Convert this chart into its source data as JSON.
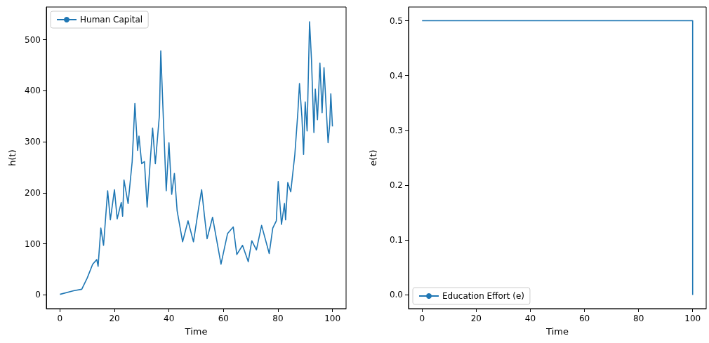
{
  "chart_data": [
    {
      "type": "line",
      "xlabel": "Time",
      "ylabel": "h(t)",
      "xlim": [
        -5,
        105
      ],
      "ylim": [
        -27,
        564
      ],
      "xticks": [
        0,
        20,
        40,
        60,
        80,
        100
      ],
      "yticks": [
        0,
        100,
        200,
        300,
        400,
        500
      ],
      "legend": "top left",
      "grid": false,
      "marker": "none",
      "line_style": "solid",
      "series": [
        {
          "name": "Human Capital",
          "color": "#1f77b4",
          "x": [
            0,
            5,
            8,
            10,
            12,
            13.5,
            14,
            15,
            16,
            17.5,
            18.5,
            20,
            21,
            22.5,
            23,
            23.5,
            25,
            26.5,
            27.5,
            28.5,
            29,
            30,
            31,
            32,
            33,
            34,
            35,
            36.5,
            37,
            38,
            39,
            40,
            41,
            42,
            43,
            45,
            47,
            49,
            51,
            52,
            53,
            54,
            56,
            57.5,
            59.1,
            61.5,
            63.6,
            64.9,
            67,
            69.1,
            70.4,
            72.1,
            74,
            76.8,
            78.1,
            79.4,
            80.1,
            81.3,
            82.4,
            82.8,
            83.6,
            84.7,
            86.2,
            87.3,
            87.9,
            88.8,
            89.4,
            90,
            90.7,
            91.6,
            92.3,
            93.2,
            93.7,
            94.5,
            95.4,
            96.2,
            96.9,
            98.4,
            99,
            99.4,
            100
          ],
          "values": [
            1,
            8,
            11,
            33,
            60,
            69,
            56,
            131,
            97,
            204,
            147,
            206,
            149,
            181,
            154,
            225,
            179,
            261,
            375,
            283,
            311,
            257,
            261,
            172,
            252,
            327,
            257,
            352,
            478,
            338,
            204,
            298,
            197,
            238,
            165,
            104,
            145,
            104,
            174,
            206,
            156,
            110,
            152,
            108,
            60,
            120,
            133,
            79,
            97,
            65,
            106,
            88,
            136,
            81,
            131,
            145,
            222,
            138,
            179,
            147,
            220,
            202,
            275,
            357,
            414,
            348,
            275,
            378,
            321,
            535,
            462,
            318,
            403,
            343,
            454,
            357,
            445,
            298,
            334,
            394,
            330
          ]
        }
      ]
    },
    {
      "type": "line",
      "xlabel": "Time",
      "ylabel": "e(t)",
      "xlim": [
        -5,
        105
      ],
      "ylim": [
        -0.025,
        0.525
      ],
      "xticks": [
        0,
        20,
        40,
        60,
        80,
        100
      ],
      "yticks": [
        {
          "value": 0,
          "label": "0.0"
        },
        {
          "value": 0.1,
          "label": "0.1"
        },
        {
          "value": 0.2,
          "label": "0.2"
        },
        {
          "value": 0.3,
          "label": "0.3"
        },
        {
          "value": 0.4,
          "label": "0.4"
        },
        {
          "value": 0.5,
          "label": "0.5"
        }
      ],
      "legend": "bottom left",
      "grid": false,
      "marker": "none",
      "line_style": "solid",
      "series": [
        {
          "name": "Education Effort (e)",
          "color": "#1f77b4",
          "x": [
            0,
            100,
            100
          ],
          "values": [
            0.5,
            0.5,
            0
          ]
        }
      ]
    }
  ]
}
